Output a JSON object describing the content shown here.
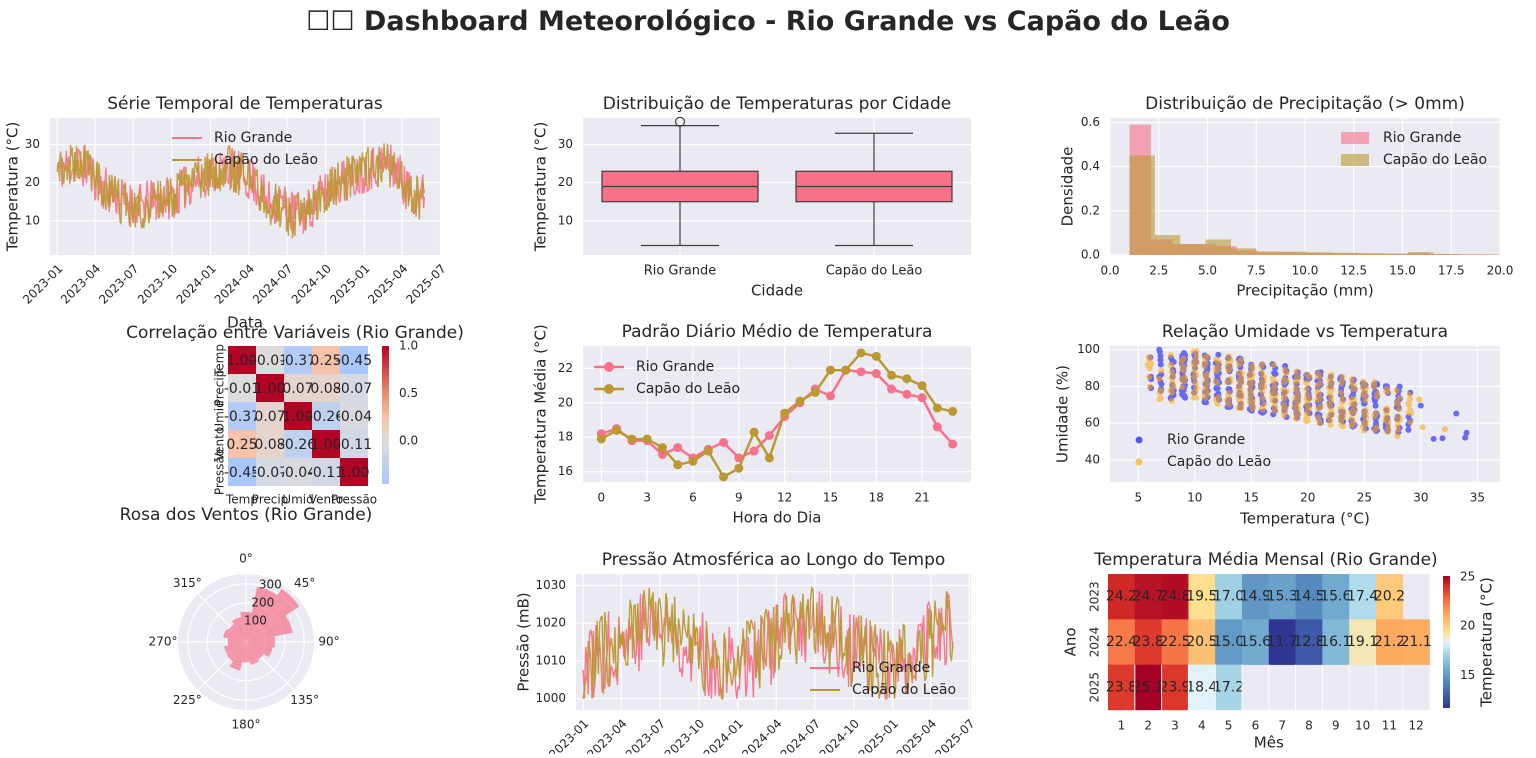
{
  "page": {
    "title": "☐☐ Dashboard Meteorológico - Rio Grande vs Capão do Leão"
  },
  "colors": {
    "rio_grande": "#f77189",
    "capao_do_leao": "#bb9832",
    "axes_bg": "#eaeaf2",
    "grid": "#ffffff",
    "scatter_rio": "#0000ff",
    "scatter_capao": "#ffa500"
  },
  "chart_data": [
    {
      "id": "temp_series",
      "type": "line",
      "title": "Série Temporal de Temperaturas",
      "xlabel": "Data",
      "ylabel": "Temperatura (°C)",
      "x_ticks": [
        "2023-01",
        "2023-04",
        "2023-07",
        "2023-10",
        "2024-01",
        "2024-04",
        "2024-07",
        "2024-10",
        "2025-01",
        "2025-04",
        "2025-07"
      ],
      "y_ticks": [
        10,
        20,
        30
      ],
      "ylim": [
        1,
        37
      ],
      "x_range": [
        "2022-12-15",
        "2025-06-30"
      ],
      "legend": [
        "Rio Grande",
        "Capão do Leão"
      ],
      "legend_position": "top-center",
      "series_monthly_approx": [
        {
          "name": "Rio Grande",
          "x": [
            "2023-01",
            "2023-02",
            "2023-03",
            "2023-04",
            "2023-05",
            "2023-06",
            "2023-07",
            "2023-08",
            "2023-09",
            "2023-10",
            "2023-11",
            "2023-12",
            "2024-01",
            "2024-02",
            "2024-03",
            "2024-04",
            "2024-05",
            "2024-06",
            "2024-07",
            "2024-08",
            "2024-09",
            "2024-10",
            "2024-11",
            "2024-12",
            "2025-01",
            "2025-02",
            "2025-03",
            "2025-04",
            "2025-05"
          ],
          "y": [
            24,
            25,
            24,
            19,
            17,
            15,
            14,
            15,
            16,
            17,
            20,
            22,
            23,
            24,
            22,
            20,
            15,
            15,
            12,
            12,
            16,
            19,
            21,
            22,
            24,
            25,
            24,
            18,
            17
          ]
        },
        {
          "name": "Capão do Leão",
          "x": [
            "2023-01",
            "2023-02",
            "2023-03",
            "2023-04",
            "2023-05",
            "2023-06",
            "2023-07",
            "2023-08",
            "2023-09",
            "2023-10",
            "2023-11",
            "2023-12",
            "2024-01",
            "2024-02",
            "2024-03",
            "2024-04",
            "2024-05",
            "2024-06",
            "2024-07",
            "2024-08",
            "2024-09",
            "2024-10",
            "2024-11",
            "2024-12",
            "2025-01",
            "2025-02",
            "2025-03",
            "2025-04",
            "2025-05"
          ],
          "y": [
            24,
            25,
            24,
            19,
            16,
            14,
            13,
            14,
            16,
            17,
            20,
            22,
            23,
            24,
            22,
            20,
            15,
            14,
            11,
            12,
            16,
            19,
            21,
            22,
            24,
            25,
            24,
            18,
            16
          ]
        }
      ]
    },
    {
      "id": "temp_box",
      "type": "box",
      "title": "Distribuição de Temperaturas por Cidade",
      "xlabel": "Cidade",
      "ylabel": "Temperatura (°C)",
      "ylim": [
        1,
        37
      ],
      "y_ticks": [
        10,
        20,
        30
      ],
      "categories": [
        "Rio Grande",
        "Capão do Leão"
      ],
      "boxes": [
        {
          "name": "Rio Grande",
          "min": 3.5,
          "q1": 15,
          "median": 19,
          "q3": 23,
          "max": 35,
          "outliers": [
            36
          ]
        },
        {
          "name": "Capão do Leão",
          "min": 3.5,
          "q1": 15,
          "median": 19,
          "q3": 23,
          "max": 33,
          "outliers": []
        }
      ]
    },
    {
      "id": "precip_hist",
      "type": "histogram",
      "title": "Distribuição de Precipitação (> 0mm)",
      "xlabel": "Precipitação (mm)",
      "ylabel": "Densidade",
      "xlim": [
        0,
        20
      ],
      "ylim": [
        0,
        0.62
      ],
      "x_ticks": [
        "0.0",
        "2.5",
        "5.0",
        "7.5",
        "10.0",
        "12.5",
        "15.0",
        "17.5",
        "20.0"
      ],
      "y_ticks": [
        "0.0",
        "0.2",
        "0.4",
        "0.6"
      ],
      "legend": [
        "Rio Grande",
        "Capão do Leão"
      ],
      "legend_position": "top-right",
      "series": [
        {
          "name": "Rio Grande",
          "bin_edges": [
            1,
            2.1,
            3.2,
            4.3,
            5.4,
            6.5,
            7.6,
            8.7,
            9.8,
            10.9,
            12,
            13.1,
            14.2,
            15.3,
            16.4,
            17.5,
            18.6,
            19.7,
            20
          ],
          "density": [
            0.59,
            0.07,
            0.05,
            0.05,
            0.04,
            0.02,
            0.015,
            0.012,
            0.01,
            0.008,
            0.008,
            0.006,
            0.005,
            0.012,
            0.004,
            0.003,
            0.003,
            0.002
          ]
        },
        {
          "name": "Capão do Leão",
          "bin_edges": [
            1,
            2.3,
            3.6,
            4.9,
            6.2,
            7.5,
            8.8,
            10.1,
            11.4,
            12.7,
            14,
            15.3,
            16.6,
            17.9,
            19.2,
            20
          ],
          "density": [
            0.45,
            0.09,
            0.05,
            0.07,
            0.03,
            0.015,
            0.015,
            0.012,
            0.01,
            0.008,
            0.006,
            0.012,
            0.005,
            0.003,
            0.002
          ]
        }
      ]
    },
    {
      "id": "corr_heatmap",
      "type": "heatmap",
      "title": "Correlação entre Variáveis (Rio Grande)",
      "labels": [
        "Temp",
        "Precip",
        "Umid",
        "Vento",
        "Pressão"
      ],
      "matrix": [
        [
          1.0,
          -0.01,
          -0.37,
          0.25,
          -0.45
        ],
        [
          -0.01,
          1.0,
          0.07,
          0.08,
          -0.07
        ],
        [
          -0.37,
          0.07,
          1.0,
          -0.26,
          -0.04
        ],
        [
          0.25,
          0.08,
          -0.26,
          1.0,
          -0.11
        ],
        [
          -0.45,
          -0.07,
          -0.04,
          -0.11,
          1.0
        ]
      ],
      "cell_labels": [
        [
          "1.00",
          "-0.01",
          "-0.37",
          "0.25",
          "-0.45"
        ],
        [
          "-0.01",
          "1.00",
          "0.07",
          "0.08",
          "-0.07"
        ],
        [
          "-0.37",
          "0.07",
          "1.00",
          "-0.26",
          "-0.04"
        ],
        [
          "0.25",
          "0.08",
          "-0.26",
          "1.00",
          "-0.11"
        ],
        [
          "-0.45",
          "-0.07",
          "-0.04",
          "-0.11",
          "1.00"
        ]
      ],
      "colorbar_ticks": [
        "0.0",
        "0.5",
        "1.0"
      ],
      "vmin": -0.45,
      "vmax": 1.0,
      "colormap": "coolwarm"
    },
    {
      "id": "daily_pattern",
      "type": "line",
      "title": "Padrão Diário Médio de Temperatura",
      "xlabel": "Hora do Dia",
      "ylabel": "Temperatura Média (°C)",
      "x": [
        0,
        1,
        2,
        3,
        4,
        5,
        6,
        7,
        8,
        9,
        10,
        11,
        12,
        13,
        14,
        15,
        16,
        17,
        18,
        19,
        20,
        21,
        22,
        23
      ],
      "x_ticks": [
        0,
        3,
        6,
        9,
        12,
        15,
        18,
        21
      ],
      "y_ticks": [
        16,
        18,
        20,
        22
      ],
      "ylim": [
        15.4,
        23.3
      ],
      "legend": [
        "Rio Grande",
        "Capão do Leão"
      ],
      "legend_position": "top-left",
      "series": [
        {
          "name": "Rio Grande",
          "values": [
            18.2,
            18.5,
            17.8,
            17.8,
            17.0,
            17.4,
            16.8,
            17.3,
            17.7,
            16.8,
            17.2,
            18.1,
            19.2,
            20.0,
            20.8,
            20.4,
            21.9,
            21.8,
            21.7,
            20.8,
            20.5,
            20.3,
            18.6,
            17.6
          ]
        },
        {
          "name": "Capão do Leão",
          "values": [
            17.9,
            18.4,
            17.9,
            17.9,
            17.4,
            16.4,
            16.6,
            17.2,
            15.7,
            16.2,
            18.3,
            16.8,
            19.4,
            20.1,
            20.6,
            21.9,
            21.9,
            22.9,
            22.7,
            21.6,
            21.4,
            21.0,
            19.7,
            19.5
          ]
        }
      ]
    },
    {
      "id": "humidity_scatter",
      "type": "scatter",
      "title": "Relação Umidade vs Temperatura",
      "xlabel": "Temperatura (°C)",
      "ylabel": "Umidade (%)",
      "xlim": [
        2.5,
        37
      ],
      "ylim": [
        28,
        102
      ],
      "x_ticks": [
        5,
        10,
        15,
        20,
        25,
        30,
        35
      ],
      "y_ticks": [
        40,
        60,
        80,
        100
      ],
      "legend": [
        "Rio Grande",
        "Capão do Leão"
      ],
      "legend_position": "lower-left",
      "series": [
        {
          "name": "Rio Grande",
          "x_min": 4,
          "x_max": 35.5,
          "y_min": 32,
          "y_max": 100
        },
        {
          "name": "Capão do Leão",
          "x_min": 4,
          "x_max": 32,
          "y_min": 35,
          "y_max": 100
        }
      ]
    },
    {
      "id": "wind_rose",
      "type": "polar-bar",
      "title": "Rosa dos Ventos (Rio Grande)",
      "angle_labels": [
        "0°",
        "45°",
        "90°",
        "135°",
        "180°",
        "225°",
        "270°",
        "315°"
      ],
      "radial_ticks": [
        100,
        200,
        300
      ],
      "rmax": 350,
      "directions_deg": [
        0,
        22.5,
        45,
        67.5,
        90,
        112.5,
        135,
        157.5,
        180,
        202.5,
        225,
        247.5,
        270,
        292.5,
        315,
        337.5
      ],
      "counts": [
        155,
        290,
        330,
        245,
        150,
        140,
        110,
        120,
        105,
        150,
        120,
        115,
        95,
        120,
        110,
        130
      ]
    },
    {
      "id": "pressure_series",
      "type": "line",
      "title": "Pressão Atmosférica ao Longo do Tempo",
      "ylabel": "Pressão (mB)",
      "x_ticks": [
        "2023-01",
        "2023-04",
        "2023-07",
        "2023-10",
        "2024-01",
        "2024-04",
        "2024-07",
        "2024-10",
        "2025-01",
        "2025-04",
        "2025-07"
      ],
      "y_ticks": [
        1000,
        1010,
        1020,
        1030
      ],
      "ylim": [
        997,
        1033
      ],
      "legend": [
        "Rio Grande",
        "Capão do Leão"
      ],
      "legend_position": "lower-right",
      "series": [
        {
          "name": "Rio Grande",
          "approx_range": [
            1000,
            1031
          ]
        },
        {
          "name": "Capão do Leão",
          "approx_range": [
            1000,
            1032
          ]
        }
      ]
    },
    {
      "id": "monthly_heatmap",
      "type": "heatmap",
      "title": "Temperatura Média Mensal (Rio Grande)",
      "xlabel": "Mês",
      "ylabel": "Ano",
      "columns": [
        "1",
        "2",
        "3",
        "4",
        "5",
        "6",
        "7",
        "8",
        "9",
        "10",
        "11",
        "12"
      ],
      "rows": [
        "2023",
        "2024",
        "2025"
      ],
      "values": [
        [
          24.2,
          24.7,
          24.8,
          19.5,
          17.0,
          14.9,
          15.3,
          14.5,
          15.6,
          17.4,
          20.2,
          null
        ],
        [
          22.4,
          23.8,
          22.5,
          20.5,
          15.0,
          15.6,
          11.7,
          12.8,
          16.1,
          19.1,
          21.2,
          21.1
        ],
        [
          23.8,
          25.1,
          23.9,
          18.4,
          17.2,
          null,
          null,
          null,
          null,
          null,
          null,
          null
        ]
      ],
      "colorbar_label": "Temperatura (°C)",
      "colorbar_ticks": [
        "15",
        "20",
        "25"
      ],
      "vmin": 11.7,
      "vmax": 25.1,
      "colormap": "RdYlBu_r"
    }
  ]
}
